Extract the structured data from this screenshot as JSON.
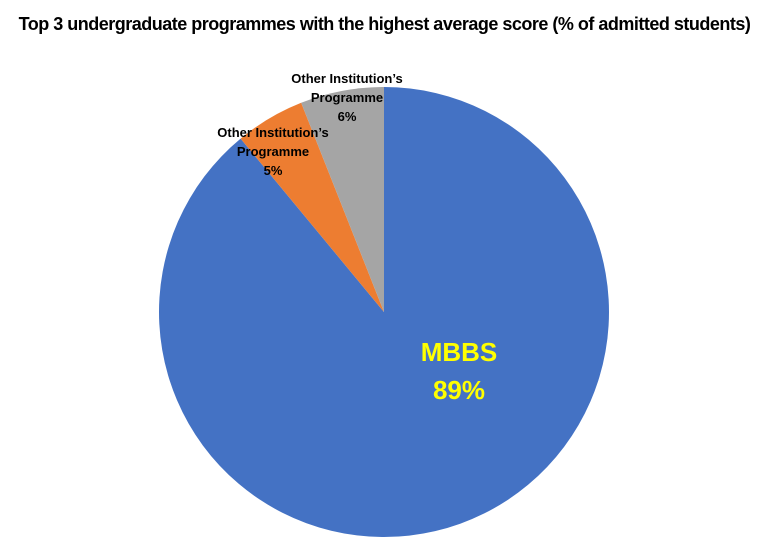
{
  "title": "Top 3 undergraduate programmes with the highest average score (% of admitted students)",
  "chart_data": {
    "type": "pie",
    "title": "Top 3 undergraduate programmes with the highest average score (% of admitted students)",
    "categories": [
      "MBBS",
      "Other Institution’s Programme",
      "Other Institution’s Programme"
    ],
    "values": [
      89,
      5,
      6
    ],
    "unit": "%",
    "start_angle_deg": 0,
    "direction": "clockwise",
    "legend": "none",
    "background": "#ffffff",
    "segments": [
      {
        "label": "MBBS",
        "value": 89,
        "pct_label": "89%",
        "color": "#4472C4",
        "label_color": "#FFFF00",
        "label_position": "inside"
      },
      {
        "label": "Other Institution’s Programme",
        "value": 5,
        "pct_label": "5%",
        "color": "#ED7D31",
        "label_color": "#000000",
        "label_position": "outside"
      },
      {
        "label": "Other Institution’s Programme",
        "value": 6,
        "pct_label": "6%",
        "color": "#A5A5A5",
        "label_color": "#000000",
        "label_position": "outside"
      }
    ]
  }
}
